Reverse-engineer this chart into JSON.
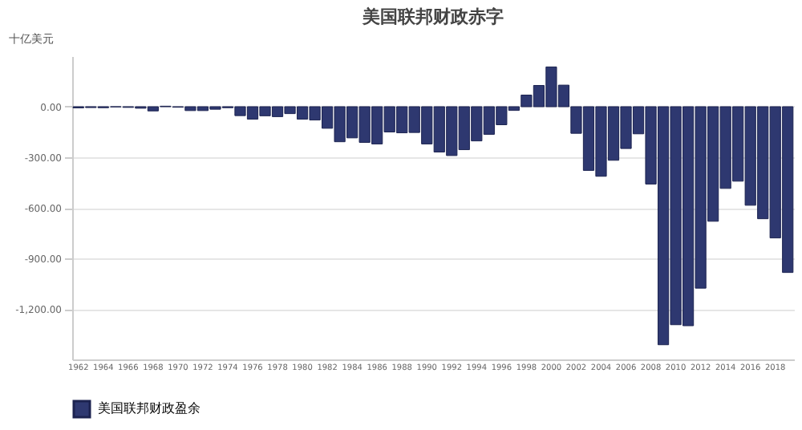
{
  "chart_data": {
    "type": "bar",
    "title": "美国联邦财政赤字",
    "ylabel": "十亿美元",
    "categories": [
      "1962",
      null,
      "1964",
      null,
      "1966",
      null,
      "1968",
      null,
      "1970",
      null,
      "1972",
      null,
      "1974",
      null,
      "1976",
      null,
      "1978",
      null,
      "1980",
      null,
      "1982",
      null,
      "1984",
      null,
      "1986",
      null,
      "1988",
      null,
      "1990",
      null,
      "1992",
      null,
      "1994",
      null,
      "1996",
      null,
      "1998",
      null,
      "2000",
      null,
      "2002",
      null,
      "2004",
      null,
      "2006",
      null,
      "2008",
      null,
      "2010",
      null,
      "2012",
      null,
      "2014",
      null,
      "2016",
      null,
      "2018",
      null
    ],
    "series": [
      {
        "name": "美国联邦财政盈余",
        "color": "#2e3870",
        "values": [
          -7,
          -5,
          -6,
          -1,
          -4,
          -9,
          -25,
          3,
          -3,
          -23,
          -23,
          -15,
          -6,
          -53,
          -74,
          -54,
          -59,
          -41,
          -74,
          -79,
          -128,
          -208,
          -185,
          -212,
          -221,
          -150,
          -155,
          -153,
          -221,
          -269,
          -290,
          -255,
          -203,
          -164,
          -107,
          -22,
          69,
          126,
          236,
          128,
          -158,
          -378,
          -413,
          -318,
          -248,
          -161,
          -459,
          -1413,
          -1294,
          -1300,
          -1077,
          -680,
          -485,
          -442,
          -585,
          -665,
          -779,
          -984
        ]
      }
    ],
    "ylim": [
      -1500,
      300
    ],
    "yticks": [
      {
        "value": -1200,
        "label": "-1,200.00"
      },
      {
        "value": -900,
        "label": "-900.00"
      },
      {
        "value": -600,
        "label": "-600.00"
      },
      {
        "value": -300,
        "label": "-300.00"
      },
      {
        "value": 0,
        "label": "0.00"
      }
    ],
    "grid": "y",
    "legend": "bottom"
  }
}
